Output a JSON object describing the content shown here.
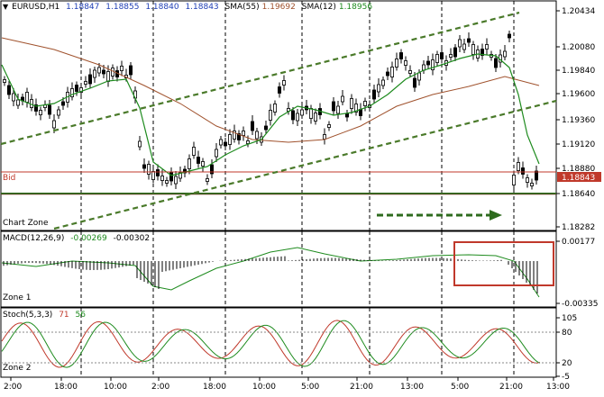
{
  "colors": {
    "background": "#ffffff",
    "grid": "#000000",
    "bull": "#ffffff",
    "bear": "#000000",
    "sma_slow": "#a0522d",
    "sma_fast": "#1e8b1e",
    "channel": "#4a7a2a",
    "support": "#2e6b1e",
    "bid_line": "#c0392b",
    "stoch_main": "#c0392b",
    "stoch_signal": "#1e8b1e",
    "macd_signal": "#1e8b1e",
    "highlight_box": "#c0392b",
    "text_blue": "#1f3fb5"
  },
  "main_panel": {
    "symbol": "EURUSD,H1",
    "ohlc": [
      "1.18847",
      "1.18855",
      "1.18840",
      "1.18843"
    ],
    "sma55_label": "SMA(55)",
    "sma55_value": "1.19692",
    "sma12_label": "SMA(12)",
    "sma12_value": "1.18956",
    "bid_label": "Bid",
    "bid_price": "1.18843",
    "zone_label": "Chart Zone",
    "price_ticks": [
      "1.20434",
      "1.20080",
      "1.19840",
      "1.19600",
      "1.19360",
      "1.19120",
      "1.18880",
      "1.18640",
      "1.18282"
    ]
  },
  "macd_panel": {
    "label": "MACD(12,26,9)",
    "main_value": "-0.00269",
    "signal_value": "-0.00302",
    "zone_label": "Zone 1",
    "ticks": [
      "0.00177",
      "-0.00335"
    ]
  },
  "stoch_panel": {
    "label": "Stoch(5,3,3)",
    "main_value": "71",
    "signal_value": "56",
    "zone_label": "Zone 2",
    "ticks": [
      "105",
      "80",
      "20",
      "-5"
    ]
  },
  "time_axis": [
    "2:00",
    "18:00",
    "10:00",
    "2:00",
    "18:00",
    "10:00",
    "5:00",
    "21:00",
    "13:00",
    "5:00",
    "21:00",
    "13:00"
  ]
}
